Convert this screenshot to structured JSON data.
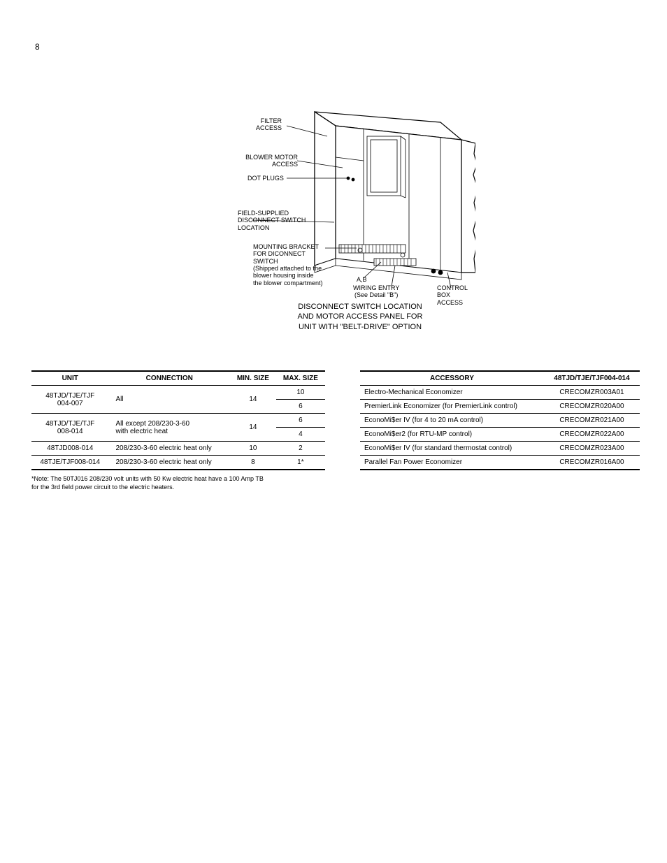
{
  "page_number": "8",
  "diagram": {
    "labels": {
      "filter_access": "FILTER\nACCESS",
      "blower_motor_access": "BLOWER MOTOR\nACCESS",
      "dot_plugs": "DOT PLUGS",
      "field_supplied": "FIELD-SUPPLIED\nDISCONNECT SWITCH\nLOCATION",
      "mounting_bracket": "MOUNTING BRACKET\nFOR DICONNECT SWITCH\n(Shipped attached to the\nblower housing inside\nthe blower compartment)",
      "ab": "A,B",
      "wiring_entry": "WIRING ENTRY\n(See Detail \"B\")",
      "control_box_access": "CONTROL BOX\nACCESS"
    },
    "caption_line1": "DISCONNECT SWITCH LOCATION",
    "caption_line2": "AND MOTOR ACCESS PANEL FOR",
    "caption_line3": "UNIT WITH \"BELT-DRIVE\" OPTION"
  },
  "table_left": {
    "headers": [
      "UNIT",
      "CONNECTION",
      "MIN. SIZE",
      "MAX. SIZE"
    ],
    "rows": [
      {
        "unit": "48TJD/TJE/TJF\n004-007",
        "connection": "All",
        "min": "14",
        "max1": "10",
        "max2": "6"
      },
      {
        "unit": "48TJD/TJE/TJF\n008-014",
        "connection": "All except 208/230-3-60\nwith electric heat",
        "min": "14",
        "max1": "6",
        "max2": "4"
      },
      {
        "unit": "48TJD008-014",
        "connection": "208/230-3-60 electric heat only",
        "min": "10",
        "max": "2"
      },
      {
        "unit": "48TJE/TJF008-014",
        "connection": "208/230-3-60 electric heat only",
        "min": "8",
        "max": "1*"
      }
    ],
    "footnote": "*Note: The 50TJ016 208/230 volt units with 50 Kw electric heat have a 100 Amp TB\nfor the 3rd field power circuit to the electric heaters."
  },
  "table_right": {
    "headers": [
      "ACCESSORY",
      "48TJD/TJE/TJF004-014"
    ],
    "rows": [
      [
        "Electro-Mechanical Economizer",
        "CRECOMZR003A01"
      ],
      [
        "PremierLink Economizer (for PremierLink control)",
        "CRECOMZR020A00"
      ],
      [
        "EconoMi$er IV (for 4 to 20 mA control)",
        "CRECOMZR021A00"
      ],
      [
        "EconoMi$er2 (for RTU-MP control)",
        "CRECOMZR022A00"
      ],
      [
        "EconoMi$er IV (for standard thermostat control)",
        "CRECOMZR023A00"
      ],
      [
        "Parallel Fan Power Economizer",
        "CRECOMZR016A00"
      ]
    ]
  },
  "styling": {
    "bg": "#ffffff",
    "text": "#000000",
    "border": "#000000",
    "label_fontsize": 9,
    "caption_fontsize": 11,
    "table_fontsize": 10
  }
}
